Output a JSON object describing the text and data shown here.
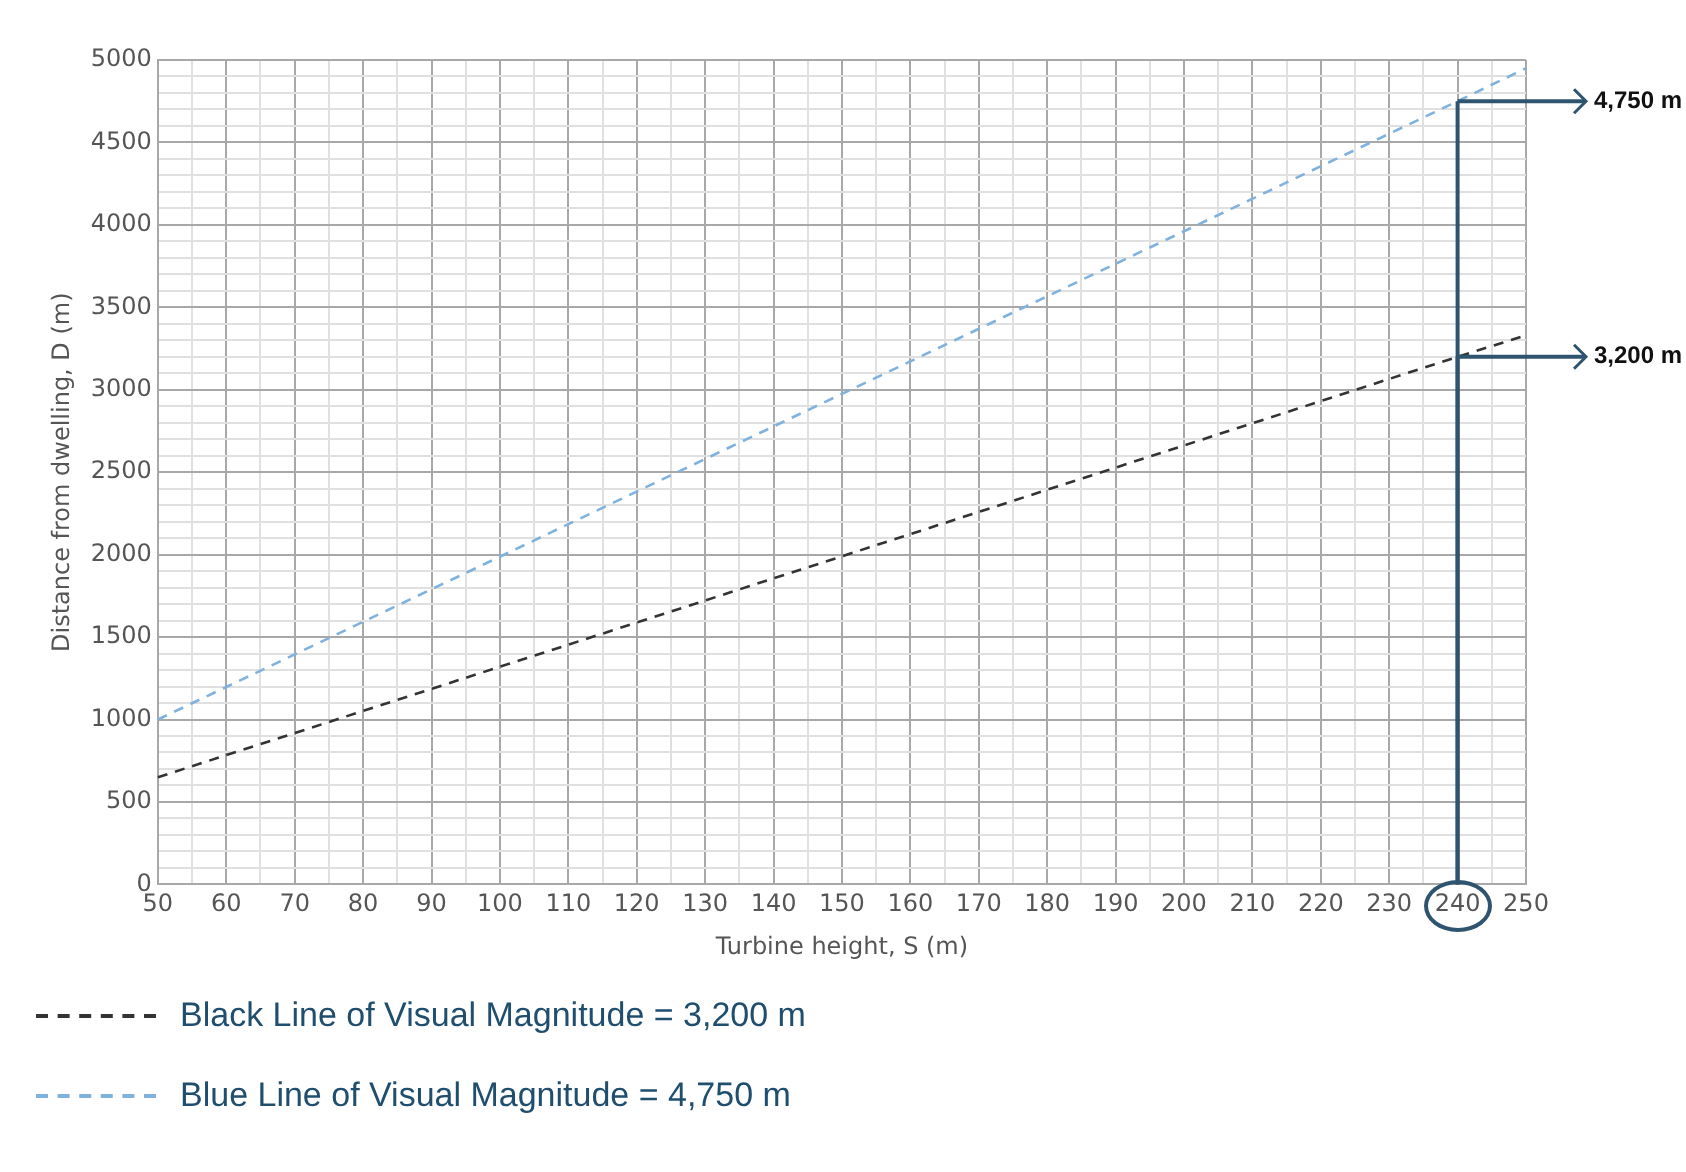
{
  "chart_data": {
    "type": "line",
    "xlabel": "Turbine height, S (m)",
    "ylabel": "Distance from dwelling, D (m)",
    "xlim": [
      50,
      250
    ],
    "xticks": [
      50,
      {
        "value": 55,
        "label": null
      },
      60,
      {
        "value": 65,
        "label": null
      },
      70,
      {
        "value": 75,
        "label": null
      },
      80,
      {
        "value": 85,
        "label": null
      },
      90,
      {
        "value": 95,
        "label": null
      },
      100,
      {
        "value": 105,
        "label": null
      },
      110,
      {
        "value": 115,
        "label": null
      },
      120,
      {
        "value": 125,
        "label": null
      },
      130,
      {
        "value": 135,
        "label": null
      },
      140,
      {
        "value": 145,
        "label": null
      },
      150,
      {
        "value": 155,
        "label": null
      },
      160,
      {
        "value": 165,
        "label": null
      },
      170,
      {
        "value": 175,
        "label": null
      },
      180,
      {
        "value": 185,
        "label": null
      },
      190,
      {
        "value": 195,
        "label": null
      },
      200,
      {
        "value": 205,
        "label": null
      },
      210,
      {
        "value": 215,
        "label": null
      },
      220,
      {
        "value": 225,
        "label": null
      },
      230,
      {
        "value": 235,
        "label": null
      },
      240,
      {
        "value": 245,
        "label": null
      },
      250
    ],
    "ylim": [
      0,
      5000
    ],
    "yticks": [
      0,
      {
        "value": 100,
        "label": null
      },
      {
        "value": 200,
        "label": null
      },
      {
        "value": 300,
        "label": null
      },
      {
        "value": 400,
        "label": null
      },
      500,
      {
        "value": 600,
        "label": null
      },
      {
        "value": 700,
        "label": null
      },
      {
        "value": 800,
        "label": null
      },
      {
        "value": 900,
        "label": null
      },
      1000,
      {
        "value": 1100,
        "label": null
      },
      {
        "value": 1200,
        "label": null
      },
      {
        "value": 1300,
        "label": null
      },
      {
        "value": 1400,
        "label": null
      },
      1500,
      {
        "value": 1600,
        "label": null
      },
      {
        "value": 1700,
        "label": null
      },
      {
        "value": 1800,
        "label": null
      },
      {
        "value": 1900,
        "label": null
      },
      2000,
      {
        "value": 2100,
        "label": null
      },
      {
        "value": 2200,
        "label": null
      },
      {
        "value": 2300,
        "label": null
      },
      {
        "value": 2400,
        "label": null
      },
      2500,
      {
        "value": 2600,
        "label": null
      },
      {
        "value": 2700,
        "label": null
      },
      {
        "value": 2800,
        "label": null
      },
      {
        "value": 2900,
        "label": null
      },
      3000,
      {
        "value": 3100,
        "label": null
      },
      {
        "value": 3200,
        "label": null
      },
      {
        "value": 3300,
        "label": null
      },
      {
        "value": 3400,
        "label": null
      },
      3500,
      {
        "value": 3600,
        "label": null
      },
      {
        "value": 3700,
        "label": null
      },
      {
        "value": 3800,
        "label": null
      },
      {
        "value": 3900,
        "label": null
      },
      4000,
      {
        "value": 4100,
        "label": null
      },
      {
        "value": 4200,
        "label": null
      },
      {
        "value": 4300,
        "label": null
      },
      {
        "value": 4400,
        "label": null
      },
      4500,
      {
        "value": 4600,
        "label": null
      },
      {
        "value": 4700,
        "label": null
      },
      {
        "value": 4800,
        "label": null
      },
      {
        "value": 4900,
        "label": null
      },
      5000
    ],
    "series": [
      {
        "name": "Black Line of Visual Magnitude = 3,200 m",
        "color": "#333333",
        "x": [
          50,
          150,
          240,
          250
        ],
        "values": [
          650,
          1990,
          3200,
          3330
        ]
      },
      {
        "name": "Blue Line of Visual Magnitude = 4,750 m",
        "color": "#7fb2de",
        "x": [
          50,
          150,
          240,
          250
        ],
        "values": [
          1000,
          2975,
          4750,
          4950
        ]
      }
    ],
    "annotations": [
      {
        "text": "4,750 m",
        "x": 240,
        "y": 4750
      },
      {
        "text": "3,200 m",
        "x": 240,
        "y": 3200
      }
    ],
    "grid": true,
    "legend": "bottom",
    "marker": "none",
    "line_style": "dashed"
  }
}
